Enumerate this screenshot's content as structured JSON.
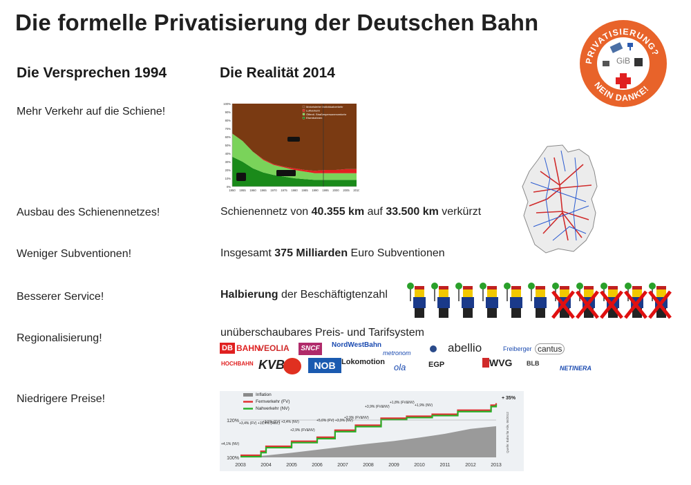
{
  "slide": {
    "title": "Die formelle Privatisierung der Deutschen Bahn",
    "left_heading": "Die Versprechen 1994",
    "right_heading": "Die Realität 2014"
  },
  "badge": {
    "ring_text": "PRIVATISIERUNG? NEIN DANKE!",
    "center_text": "GiB",
    "color": "#e8632a"
  },
  "rows": [
    {
      "promise": "Mehr Verkehr auf die Schiene!"
    },
    {
      "promise": "Ausbau des Schienennetzes!",
      "r_pre": "Schienennetz von ",
      "r_b1": "40.355 km",
      "r_mid": " auf ",
      "r_b2": "33.500 km",
      "r_post": " verkürzt"
    },
    {
      "promise": "Weniger Subventionen!",
      "r_pre": "Insgesamt ",
      "r_b1": "375 Milliarden",
      "r_post": " Euro Subventionen"
    },
    {
      "promise": "Besserer Service!",
      "r_b1": "Halbierung",
      "r_post": " der Beschäftigtenzahl"
    },
    {
      "promise": "Regionalisierung!",
      "r_pre": "unüberschaubares Preis- und Tarifsystem"
    },
    {
      "promise": "Niedrigere Preise!"
    }
  ],
  "logos": [
    "DB",
    "BAHN",
    "VEOLIA",
    "SNCF",
    "NordWestBahn",
    "metronom",
    "abellio",
    "Freiberger",
    "cantus",
    "HOCHBAHN",
    "KVB",
    "NOB",
    "Lokomotion",
    "ola",
    "EGP",
    "WVG",
    "BLB",
    "NETINERA"
  ],
  "workers": {
    "kept": 6,
    "crossed": 5
  },
  "chart_data": [
    {
      "type": "area",
      "x": [
        1950,
        1955,
        1960,
        1965,
        1970,
        1975,
        1980,
        1985,
        1990,
        1995,
        2000,
        2005,
        2010
      ],
      "x_ticks": [
        "1950",
        "1955",
        "1960",
        "1965",
        "1970",
        "1975",
        "1980",
        "1985",
        "1990",
        "1995",
        "2000",
        "2005",
        "2010"
      ],
      "y_ticks": [
        "0%",
        "10%",
        "20%",
        "30%",
        "40%",
        "50%",
        "60%",
        "70%",
        "80%",
        "90%",
        "100%"
      ],
      "ylim": [
        0,
        100
      ],
      "legend": [
        "Motorisierter Individualverkehr",
        "Luftverkehr",
        "Öffentl. Straßenpersonenverkehr",
        "Eisenbahnen"
      ],
      "series": [
        {
          "name": "Eisenbahnen",
          "color": "#1a8a1a",
          "values": [
            36,
            30,
            22,
            17,
            14,
            12,
            10,
            9,
            8,
            8,
            8,
            8,
            8
          ]
        },
        {
          "name": "Öffentl. Straßenpersonenverkehr",
          "color": "#7ad35a",
          "values": [
            28,
            25,
            20,
            15,
            12,
            11,
            10,
            9,
            8,
            8,
            8,
            8,
            8
          ]
        },
        {
          "name": "Luftverkehr",
          "color": "#e02020",
          "values": [
            0,
            0,
            0,
            1,
            1,
            1,
            2,
            2,
            3,
            4,
            4,
            5,
            5
          ]
        },
        {
          "name": "Motorisierter Individualverkehr",
          "color": "#7a3a12",
          "values": [
            36,
            45,
            58,
            67,
            73,
            76,
            78,
            80,
            81,
            80,
            80,
            79,
            79
          ]
        }
      ]
    },
    {
      "type": "line",
      "x": [
        2003,
        2004,
        2005,
        2006,
        2007,
        2008,
        2009,
        2010,
        2011,
        2012,
        2013
      ],
      "x_ticks": [
        "2003",
        "2004",
        "2005",
        "2006",
        "2007",
        "2008",
        "2009",
        "2010",
        "2011",
        "2012",
        "2013"
      ],
      "y_ticks": [
        "100%",
        "120%"
      ],
      "end_label": "+ 35%",
      "source": "Quelle: Bahn für Alle, 06/2012",
      "series": [
        {
          "name": "Inflation",
          "color": "#8a8a8a"
        },
        {
          "name": "Fernverkehr (FV)",
          "color": "#e03030"
        },
        {
          "name": "Nahverkehr (NV)",
          "color": "#2ab02a"
        }
      ],
      "annotations": [
        "+4,1% (NV)",
        "+3,4% (FV) +15,4% (Res.)",
        "+3,5% (FV) +3,4% (NV)",
        "+2,9% (FV&NV)",
        "+5,6% (FV) +3,9% (NV)",
        "+2,9% (FV&NV)",
        "+3,9% (FV&NV)",
        "+1,8% (FV&NV)",
        "+1,9% (NV)"
      ]
    }
  ]
}
